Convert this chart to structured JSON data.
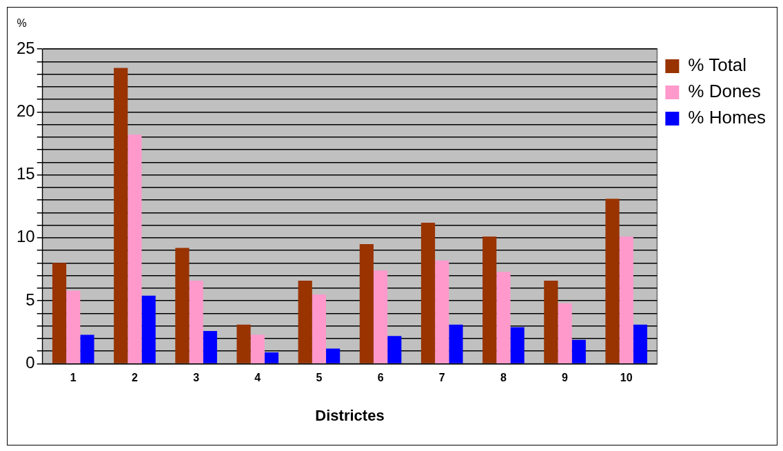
{
  "chart_data": {
    "type": "bar",
    "xlabel": "Districtes",
    "ylabel": "%",
    "categories": [
      "1",
      "2",
      "3",
      "4",
      "5",
      "6",
      "7",
      "8",
      "9",
      "10"
    ],
    "series": [
      {
        "name": "% Total",
        "color": "#993300",
        "values": [
          8.0,
          23.5,
          9.2,
          3.1,
          6.6,
          9.5,
          11.2,
          10.1,
          6.6,
          13.1
        ]
      },
      {
        "name": "% Dones",
        "color": "#ff99cc",
        "values": [
          5.8,
          18.2,
          6.6,
          2.3,
          5.5,
          7.4,
          8.2,
          7.3,
          4.8,
          10.1
        ]
      },
      {
        "name": "% Homes",
        "color": "#0000ff",
        "values": [
          2.3,
          5.4,
          2.6,
          0.9,
          1.2,
          2.2,
          3.1,
          2.9,
          1.9,
          3.1
        ]
      }
    ],
    "ylim": [
      0,
      25
    ],
    "yticks": [
      0,
      {
        "value": 1,
        "label": null
      },
      {
        "value": 2,
        "label": null
      },
      {
        "value": 3,
        "label": null
      },
      {
        "value": 4,
        "label": null
      },
      5,
      {
        "value": 6,
        "label": null
      },
      {
        "value": 7,
        "label": null
      },
      {
        "value": 8,
        "label": null
      },
      {
        "value": 9,
        "label": null
      },
      10,
      {
        "value": 11,
        "label": null
      },
      {
        "value": 12,
        "label": null
      },
      {
        "value": 13,
        "label": null
      },
      {
        "value": 14,
        "label": null
      },
      15,
      {
        "value": 16,
        "label": null
      },
      {
        "value": 17,
        "label": null
      },
      {
        "value": 18,
        "label": null
      },
      {
        "value": 19,
        "label": null
      },
      20,
      {
        "value": 21,
        "label": null
      },
      {
        "value": 22,
        "label": null
      },
      {
        "value": 23,
        "label": null
      },
      {
        "value": 24,
        "label": null
      },
      25
    ],
    "grid": "y",
    "legend": "right"
  }
}
